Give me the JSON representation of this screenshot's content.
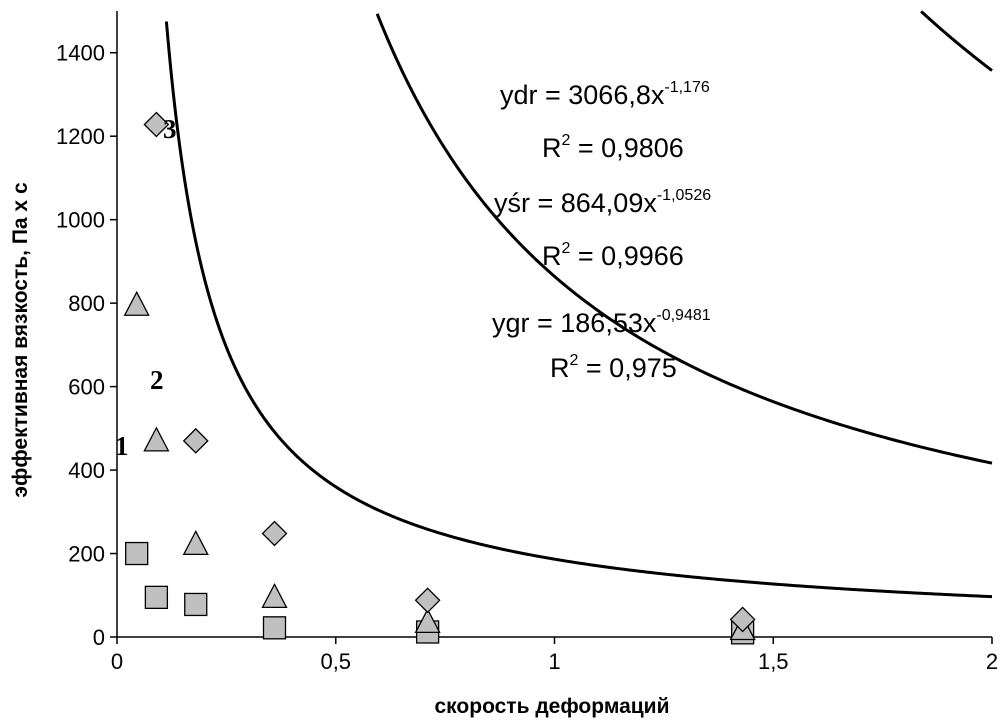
{
  "chart_data": {
    "type": "scatter",
    "xlabel": "скорость деформаций",
    "ylabel": "эффективная вязкость, Па х с",
    "xlim": [
      0,
      2
    ],
    "ylim": [
      0,
      1500
    ],
    "x_ticks": [
      "0",
      "0,5",
      "1",
      "1,5",
      "2"
    ],
    "x_tick_values": [
      0,
      0.5,
      1,
      1.5,
      2
    ],
    "y_ticks": [
      "0",
      "200",
      "400",
      "600",
      "800",
      "1000",
      "1200",
      "1400"
    ],
    "y_tick_values": [
      0,
      200,
      400,
      600,
      800,
      1000,
      1200,
      1400
    ],
    "grid": false,
    "legend": "none",
    "series": [
      {
        "label": "1",
        "marker": "square",
        "color": "#C0C0C0",
        "points": [
          [
            0.045,
            200
          ],
          [
            0.09,
            95
          ],
          [
            0.18,
            78
          ],
          [
            0.36,
            22
          ],
          [
            0.71,
            12
          ],
          [
            1.43,
            10
          ]
        ],
        "fit": {
          "a": 186.53,
          "b": -0.9481,
          "x_from": 0.045
        }
      },
      {
        "label": "2",
        "marker": "triangle",
        "color": "#C0C0C0",
        "points": [
          [
            0.045,
            795
          ],
          [
            0.09,
            470
          ],
          [
            0.18,
            222
          ],
          [
            0.36,
            95
          ],
          [
            0.71,
            35
          ],
          [
            1.43,
            18
          ]
        ],
        "fit": {
          "a": 864.09,
          "b": -1.0526,
          "x_from": 0.045
        }
      },
      {
        "label": "3",
        "marker": "diamond",
        "color": "#C0C0C0",
        "points": [
          [
            0.09,
            1228
          ],
          [
            0.18,
            470
          ],
          [
            0.36,
            248
          ],
          [
            0.71,
            88
          ],
          [
            1.43,
            42
          ]
        ],
        "fit": {
          "a": 3066.8,
          "b": -1.176,
          "x_from": 0.04
        }
      }
    ],
    "annotations": [
      {
        "base": "ydr = 3066,8x",
        "exp": "-1,176",
        "r2_base": "R",
        "r2_exp": "2",
        "r2_value": " = 0,9806"
      },
      {
        "base": "yśr = 864,09x",
        "exp": "-1,0526",
        "r2_base": "R",
        "r2_exp": "2",
        "r2_value": " = 0,9966"
      },
      {
        "base": "ygr = 186,53x",
        "exp": "-0,9481",
        "r2_base": "R",
        "r2_exp": "2",
        "r2_value": " = 0,975"
      }
    ],
    "curve_labels": [
      "1",
      "2",
      "3"
    ]
  }
}
